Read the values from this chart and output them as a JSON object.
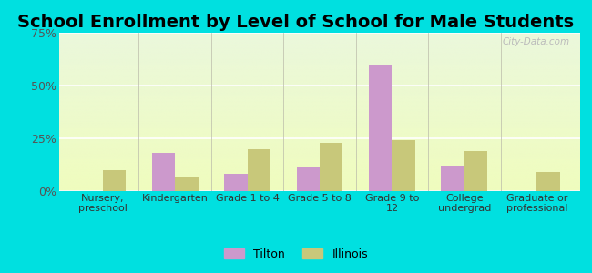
{
  "title": "School Enrollment by Level of School for Male Students",
  "categories": [
    "Nursery,\npreschool",
    "Kindergarten",
    "Grade 1 to 4",
    "Grade 5 to 8",
    "Grade 9 to\n12",
    "College\nundergrad",
    "Graduate or\nprofessional"
  ],
  "tilton": [
    0.0,
    18.0,
    8.0,
    11.0,
    60.0,
    12.0,
    0.0
  ],
  "illinois": [
    10.0,
    7.0,
    20.0,
    23.0,
    24.0,
    19.0,
    9.0
  ],
  "tilton_color": "#cc99cc",
  "illinois_color": "#c8c87a",
  "background_color": "#00e0e0",
  "ylim": [
    0,
    75
  ],
  "yticks": [
    0,
    25,
    50,
    75
  ],
  "ytick_labels": [
    "0%",
    "25%",
    "50%",
    "75%"
  ],
  "title_fontsize": 14,
  "legend_labels": [
    "Tilton",
    "Illinois"
  ],
  "watermark": "City-Data.com"
}
